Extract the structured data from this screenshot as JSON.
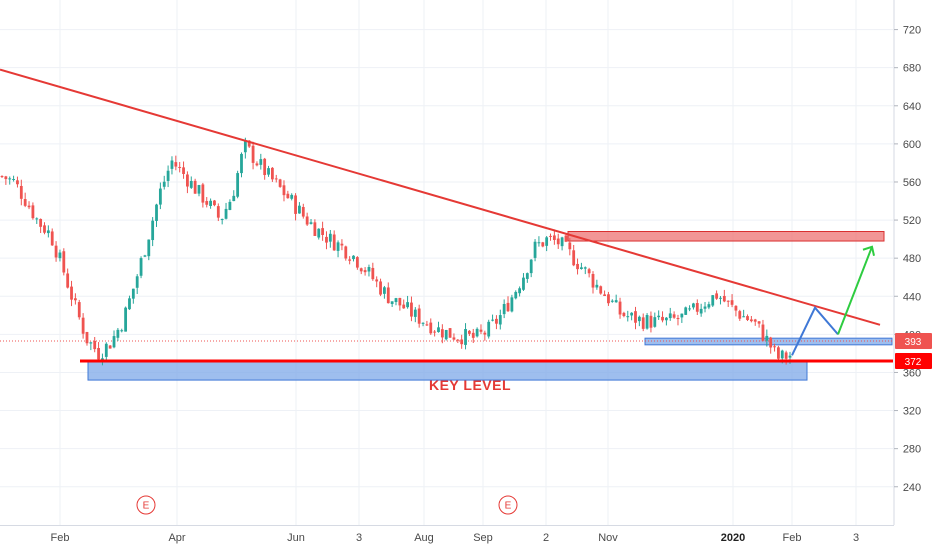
{
  "colors": {
    "up": "#26a69a",
    "down": "#ef5350",
    "trendline": "#e53935",
    "support_line": "#ff0000",
    "zone_blue_fill": "#7ea8e8",
    "zone_blue_stroke": "#3f78d6",
    "zone_red_fill": "#ef7c7c",
    "zone_red_stroke": "#d93030",
    "projection_blue": "#3f78d6",
    "projection_green": "#2ecc40",
    "grid": "#eef1f6",
    "price_badge_393": "#ef5350",
    "price_badge_372": "#ff0000"
  },
  "chart_data": {
    "type": "candlestick",
    "x_tick_labels": [
      "Feb",
      "Apr",
      "Jun",
      "3",
      "Aug",
      "Sep",
      "2",
      "Nov",
      "2020",
      "Feb",
      "3"
    ],
    "y_ticks": [
      240,
      280,
      320,
      360,
      400,
      440,
      480,
      520,
      560,
      600,
      640,
      680,
      720
    ],
    "ylim": [
      220,
      735
    ],
    "grid": true,
    "price_badges": [
      {
        "label": "393",
        "value": 393
      },
      {
        "label": "372",
        "value": 372
      }
    ],
    "event_markers": [
      "E",
      "E"
    ],
    "key_level": {
      "label": "KEY LEVEL",
      "value": 372,
      "zone": [
        352,
        372
      ]
    },
    "resistance_zone": [
      498,
      508
    ],
    "support_zone": [
      389,
      396
    ],
    "trendline": {
      "start_value": 678,
      "end_value": 410
    },
    "close_path": [
      566,
      560,
      540,
      518,
      505,
      470,
      430,
      395,
      380,
      392,
      415,
      455,
      500,
      548,
      582,
      568,
      552,
      538,
      520,
      546,
      598,
      582,
      566,
      552,
      538,
      522,
      510,
      500,
      492,
      482,
      468,
      452,
      438,
      430,
      420,
      413,
      405,
      400,
      398,
      396,
      403,
      417,
      438,
      462,
      492,
      500,
      496,
      482,
      468,
      452,
      438,
      422,
      417,
      414,
      413,
      414,
      417,
      424,
      434,
      442,
      430,
      420,
      413,
      396,
      375,
      378
    ],
    "projection": [
      378,
      428,
      400,
      492
    ]
  }
}
